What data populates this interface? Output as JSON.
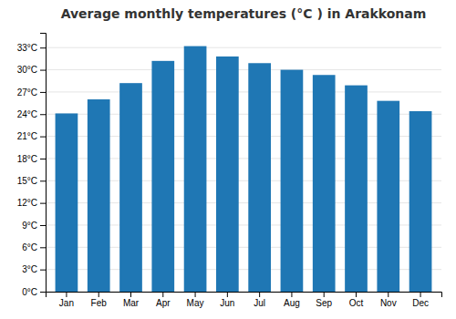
{
  "chart_data": {
    "type": "bar",
    "title": "Average monthly temperatures (°C ) in Arakkonam",
    "categories": [
      "Jan",
      "Feb",
      "Mar",
      "Apr",
      "May",
      "Jun",
      "Jul",
      "Aug",
      "Sep",
      "Oct",
      "Nov",
      "Dec"
    ],
    "values": [
      24.1,
      26.0,
      28.2,
      31.2,
      33.2,
      31.8,
      30.9,
      30.0,
      29.3,
      27.9,
      25.8,
      24.4
    ],
    "ylim": [
      0,
      35
    ],
    "yticks": [
      {
        "value": 0,
        "label": "0°C"
      },
      {
        "value": 3,
        "label": "3°C"
      },
      {
        "value": 6,
        "label": "6°C"
      },
      {
        "value": 9,
        "label": "9°C"
      },
      {
        "value": 12,
        "label": "12°C"
      },
      {
        "value": 15,
        "label": "15°C"
      },
      {
        "value": 18,
        "label": "18°C"
      },
      {
        "value": 21,
        "label": "21°C"
      },
      {
        "value": 24,
        "label": "24°C"
      },
      {
        "value": 27,
        "label": "27°C"
      },
      {
        "value": 30,
        "label": "30°C"
      },
      {
        "value": 33,
        "label": "33°C"
      }
    ],
    "grid": true
  }
}
